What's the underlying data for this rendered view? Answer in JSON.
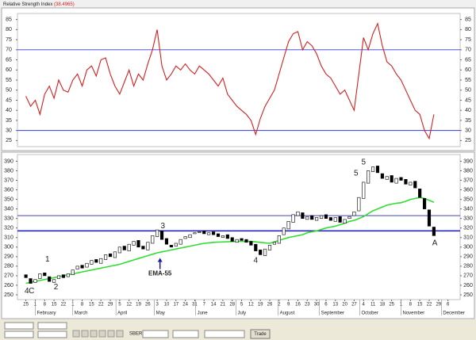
{
  "chart_data": [
    {
      "type": "line",
      "title": "Relative Strength Index",
      "title_value": "(38.4965)",
      "xlim": [
        -0.9,
        46.3
      ],
      "ylim": [
        22,
        88
      ],
      "yticks": [
        25,
        30,
        35,
        40,
        45,
        50,
        55,
        60,
        65,
        70,
        75,
        80,
        85
      ],
      "hlines": [
        70,
        30
      ],
      "hline_color": "#3a3ad0",
      "grid": false,
      "x": [
        0,
        0.5,
        1,
        1.5,
        2,
        2.5,
        3,
        3.5,
        4,
        4.5,
        5,
        5.5,
        6,
        6.5,
        7,
        7.5,
        8,
        8.5,
        9,
        9.5,
        10,
        10.5,
        11,
        11.5,
        12,
        12.5,
        13,
        13.5,
        14,
        14.5,
        15,
        15.5,
        16,
        16.5,
        17,
        17.5,
        18,
        18.5,
        19,
        19.5,
        20,
        20.5,
        21,
        21.5,
        22,
        22.5,
        23,
        23.5,
        24,
        24.5,
        25,
        25.5,
        26,
        26.5,
        27,
        27.5,
        28,
        28.5,
        29,
        29.5,
        30,
        30.5,
        31,
        31.5,
        32,
        32.5,
        33,
        33.5,
        34,
        34.5,
        35,
        35.5,
        36,
        36.5,
        37,
        37.5,
        38,
        38.5,
        39,
        39.5,
        40,
        40.5,
        41,
        41.5,
        42,
        42.5,
        43,
        43.5
      ],
      "series": [
        {
          "color": "#d42020",
          "values": [
            47,
            42,
            45,
            38,
            48,
            52,
            46,
            55,
            50,
            49,
            55,
            58,
            52,
            60,
            62,
            57,
            65,
            66,
            58,
            52,
            48,
            54,
            60,
            52,
            58,
            55,
            63,
            70,
            80,
            62,
            55,
            58,
            62,
            60,
            63,
            60,
            58,
            62,
            60,
            58,
            55,
            52,
            56,
            48,
            45,
            42,
            40,
            38,
            35,
            28,
            36,
            42,
            46,
            50,
            58,
            66,
            74,
            78,
            79,
            70,
            74,
            72,
            68,
            62,
            58,
            56,
            52,
            48,
            50,
            45,
            40,
            58,
            76,
            70,
            78,
            83,
            72,
            64,
            62,
            58,
            55,
            50,
            45,
            40,
            38,
            30,
            26,
            38
          ]
        }
      ]
    },
    {
      "type": "candlestick",
      "xlim": [
        -0.9,
        46.3
      ],
      "ylim": [
        245,
        397
      ],
      "yticks": [
        250,
        260,
        270,
        280,
        290,
        300,
        310,
        320,
        330,
        340,
        350,
        360,
        370,
        380,
        390
      ],
      "hlines": [
        333,
        317
      ],
      "hline_color": "#2a2ab8",
      "grid": false,
      "x": [
        0,
        0.5,
        1,
        1.5,
        2,
        2.5,
        3,
        3.5,
        4,
        4.5,
        5,
        5.5,
        6,
        6.5,
        7,
        7.5,
        8,
        8.5,
        9,
        9.5,
        10,
        10.5,
        11,
        11.5,
        12,
        12.5,
        13,
        13.5,
        14,
        14.5,
        15,
        15.5,
        16,
        16.5,
        17,
        17.5,
        18,
        18.5,
        19,
        19.5,
        20,
        20.5,
        21,
        21.5,
        22,
        22.5,
        23,
        23.5,
        24,
        24.5,
        25,
        25.5,
        26,
        26.5,
        27,
        27.5,
        28,
        28.5,
        29,
        29.5,
        30,
        30.5,
        31,
        31.5,
        32,
        32.5,
        33,
        33.5,
        34,
        34.5,
        35,
        35.5,
        36,
        36.5,
        37,
        37.5,
        38,
        38.5,
        39,
        39.5,
        40,
        40.5,
        41,
        41.5,
        42,
        42.5,
        43,
        43.5
      ],
      "open": [
        271,
        267,
        263,
        267,
        273,
        269,
        263,
        267,
        271,
        269,
        271,
        277,
        281,
        279,
        282,
        287,
        283,
        287,
        293,
        289,
        294,
        301,
        296,
        302,
        307,
        301,
        297,
        304,
        311,
        317,
        309,
        302,
        301,
        303,
        309,
        310,
        314,
        315,
        317,
        313,
        316,
        314,
        310,
        313,
        310,
        305,
        309,
        308,
        306,
        303,
        297,
        291,
        297,
        303,
        304,
        313,
        319,
        326,
        333,
        336,
        329,
        333,
        328,
        330,
        334,
        331,
        327,
        332,
        325,
        330,
        333,
        338,
        351,
        367,
        379,
        385,
        377,
        371,
        375,
        367,
        373,
        371,
        365,
        369,
        361,
        351,
        339,
        321
      ],
      "close": [
        268,
        262,
        266,
        272,
        270,
        264,
        266,
        270,
        268,
        272,
        276,
        280,
        278,
        283,
        286,
        284,
        288,
        292,
        290,
        295,
        300,
        297,
        303,
        306,
        300,
        298,
        305,
        312,
        318,
        308,
        303,
        300,
        304,
        308,
        311,
        313,
        315,
        316,
        314,
        315,
        313,
        311,
        312,
        309,
        306,
        308,
        307,
        305,
        302,
        296,
        292,
        298,
        302,
        305,
        312,
        320,
        327,
        334,
        337,
        330,
        332,
        329,
        331,
        333,
        330,
        328,
        331,
        326,
        329,
        332,
        337,
        352,
        368,
        380,
        384,
        378,
        372,
        374,
        368,
        372,
        370,
        366,
        368,
        362,
        352,
        340,
        322,
        312
      ],
      "series": [
        {
          "color": "#33dd33",
          "values": [
            262,
            263,
            264,
            265,
            266,
            267,
            268,
            269,
            270,
            271,
            272,
            273,
            274,
            275,
            276,
            277,
            278,
            279,
            280,
            281,
            282,
            283.5,
            285,
            286.5,
            288,
            289.5,
            291,
            292.5,
            294,
            295,
            296,
            297,
            298,
            299,
            300,
            301,
            302,
            303,
            304,
            304.5,
            305,
            305.2,
            305.4,
            305.6,
            305.8,
            306,
            306,
            306,
            306,
            305.5,
            305,
            304.5,
            304,
            305.5,
            307,
            308.5,
            310,
            311,
            312,
            313,
            315,
            316,
            317,
            318.5,
            320,
            321,
            322,
            323.5,
            325,
            327,
            328,
            330,
            332,
            335,
            338,
            340,
            342,
            344,
            345,
            346,
            346.5,
            348,
            350,
            351,
            352,
            351,
            349,
            347
          ]
        }
      ],
      "x_labels": [
        "25",
        "1",
        "8",
        "15",
        "22",
        "1",
        "8",
        "15",
        "22",
        "29",
        "5",
        "12",
        "19",
        "26",
        "3",
        "10",
        "17",
        "24",
        "31",
        "7",
        "14",
        "21",
        "28",
        "5",
        "12",
        "19",
        "26",
        "2",
        "9",
        "16",
        "23",
        "30",
        "6",
        "13",
        "20",
        "27",
        "4",
        "11",
        "18",
        "25",
        "1",
        "8",
        "15",
        "22",
        "29",
        "6"
      ],
      "month_labels": [
        {
          "value": 1,
          "label": "February"
        },
        {
          "value": 5,
          "label": "March"
        },
        {
          "value": 9.6,
          "label": "April"
        },
        {
          "value": 13.7,
          "label": "May"
        },
        {
          "value": 18.1,
          "label": "June"
        },
        {
          "value": 22.4,
          "label": "July"
        },
        {
          "value": 26.9,
          "label": "August"
        },
        {
          "value": 31.3,
          "label": "September"
        },
        {
          "value": 35.6,
          "label": "October"
        },
        {
          "value": 40,
          "label": "November"
        },
        {
          "value": 44.3,
          "label": "December"
        }
      ],
      "annotations": [
        {
          "text": "4",
          "x": 0.1,
          "y": 254,
          "color": "#a030c0"
        },
        {
          "text": "C",
          "x": 0.6,
          "y": 254,
          "color": "#3030c0"
        },
        {
          "text": "1",
          "x": 2.3,
          "y": 287,
          "color": "#cc33cc"
        },
        {
          "text": "2",
          "x": 3.2,
          "y": 258,
          "color": "#cc33cc"
        },
        {
          "text": "3",
          "x": 14.6,
          "y": 322,
          "color": "#cc33cc"
        },
        {
          "text": "EMA-55",
          "x": 14.3,
          "y": 272,
          "color": "#1a1aa0",
          "arrow": true
        },
        {
          "text": "4",
          "x": 24.5,
          "y": 286,
          "color": "#cc33cc"
        },
        {
          "text": "5",
          "x": 35.2,
          "y": 377,
          "color": "#1a1aa0"
        },
        {
          "text": "5",
          "x": 36,
          "y": 389,
          "color": "#cc33cc"
        },
        {
          "text": "A",
          "x": 43.6,
          "y": 304,
          "color": "#2a5ad0"
        }
      ]
    }
  ],
  "toolbar": {
    "symbol": "SBER",
    "button": "Trade"
  }
}
